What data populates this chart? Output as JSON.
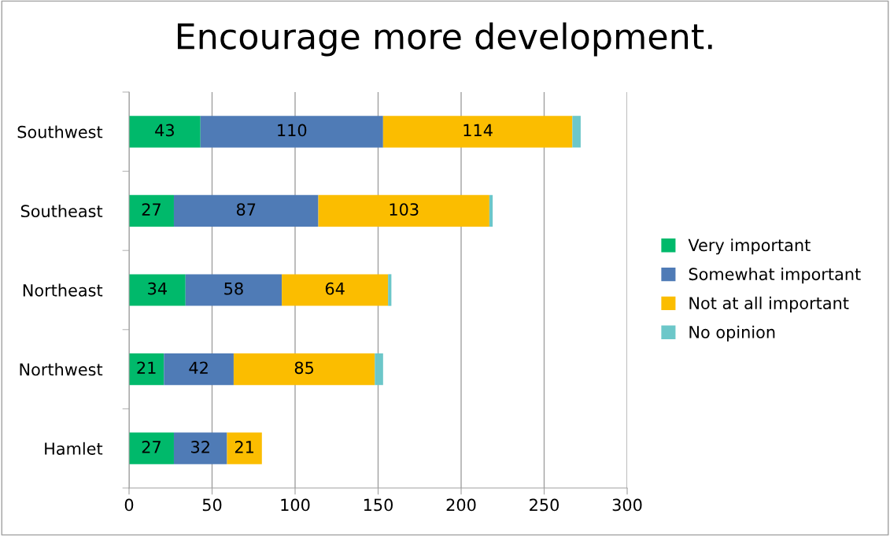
{
  "chart_data": {
    "type": "bar",
    "orientation": "horizontal",
    "stacked": true,
    "title": "Encourage more development.",
    "categories": [
      "Southwest",
      "Southeast",
      "Northeast",
      "Northwest",
      "Hamlet"
    ],
    "series": [
      {
        "name": "Very important",
        "color": "#00b96b",
        "values": [
          43,
          27,
          34,
          21,
          27
        ],
        "value_labels": [
          "43",
          "27",
          "34",
          "21",
          "27"
        ]
      },
      {
        "name": "Somewhat important",
        "color": "#4f7bb6",
        "values": [
          110,
          87,
          58,
          42,
          32
        ],
        "value_labels": [
          "110",
          "87",
          "58",
          "42",
          "32"
        ]
      },
      {
        "name": "Not at all important",
        "color": "#fbbd00",
        "values": [
          114,
          103,
          64,
          85,
          21
        ],
        "value_labels": [
          "114",
          "103",
          "64",
          "85",
          "21"
        ]
      },
      {
        "name": "No opinion",
        "color": "#6cc7c9",
        "values": [
          5,
          2,
          2,
          5,
          0
        ]
      }
    ],
    "xlim": [
      0,
      300
    ],
    "xticks": [
      0,
      50,
      100,
      150,
      200,
      250,
      300
    ],
    "grid": "x",
    "legend": "right"
  }
}
